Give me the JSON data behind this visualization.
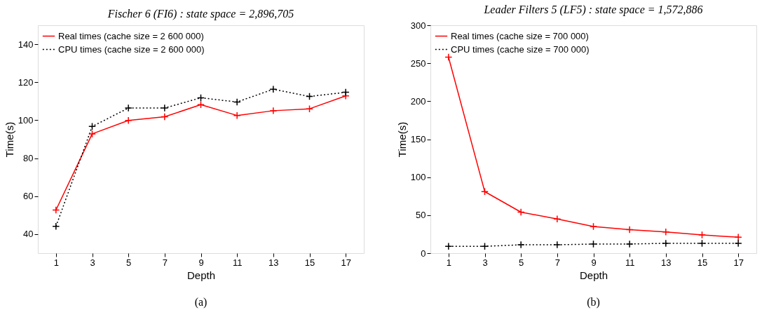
{
  "chart_data": [
    {
      "type": "line",
      "title": "Fischer 6 (FI6) : state space = 2,896,705",
      "xlabel": "Depth",
      "ylabel": "Time(s)",
      "x": [
        1,
        3,
        5,
        7,
        9,
        11,
        13,
        15,
        17
      ],
      "xlim": [
        0,
        18
      ],
      "xticks": [
        1,
        3,
        5,
        7,
        9,
        11,
        13,
        15,
        17
      ],
      "ylim": [
        30,
        150
      ],
      "yticks": [
        40,
        60,
        80,
        100,
        120,
        140
      ],
      "grid": false,
      "legend": "top left",
      "marker": "cross",
      "annotations": [
        "(a)"
      ],
      "series": [
        {
          "name": "Real times (cache size = 2 600 000)",
          "color": "#ff0000",
          "line_style": "solid",
          "values": [
            52.7,
            92.8,
            99.9,
            101.8,
            108.2,
            102.5,
            105.0,
            106.0,
            112.8
          ]
        },
        {
          "name": "CPU times (cache size = 2 600 000)",
          "color": "#000000",
          "line_style": "dotted",
          "values": [
            44.1,
            96.7,
            106.4,
            106.4,
            111.8,
            109.6,
            116.3,
            112.5,
            114.7
          ]
        }
      ]
    },
    {
      "type": "line",
      "title": "Leader Filters 5 (LF5) : state space = 1,572,886",
      "xlabel": "Depth",
      "ylabel": "Time(s)",
      "x": [
        1,
        3,
        5,
        7,
        9,
        11,
        13,
        15,
        17
      ],
      "xlim": [
        0,
        18
      ],
      "xticks": [
        1,
        3,
        5,
        7,
        9,
        11,
        13,
        15,
        17
      ],
      "ylim": [
        0,
        300
      ],
      "yticks": [
        0,
        50,
        100,
        150,
        200,
        250,
        300
      ],
      "grid": false,
      "legend": "top left",
      "marker": "cross",
      "annotations": [
        "(b)"
      ],
      "series": [
        {
          "name": "Real times (cache size = 700 000)",
          "color": "#ff0000",
          "line_style": "solid",
          "values": [
            258,
            81,
            54,
            45,
            35,
            31,
            28,
            24,
            21
          ]
        },
        {
          "name": "CPU times (cache size = 700 000)",
          "color": "#000000",
          "line_style": "dotted",
          "values": [
            9,
            9,
            11,
            11,
            12,
            12,
            13,
            13,
            13
          ]
        }
      ]
    }
  ]
}
